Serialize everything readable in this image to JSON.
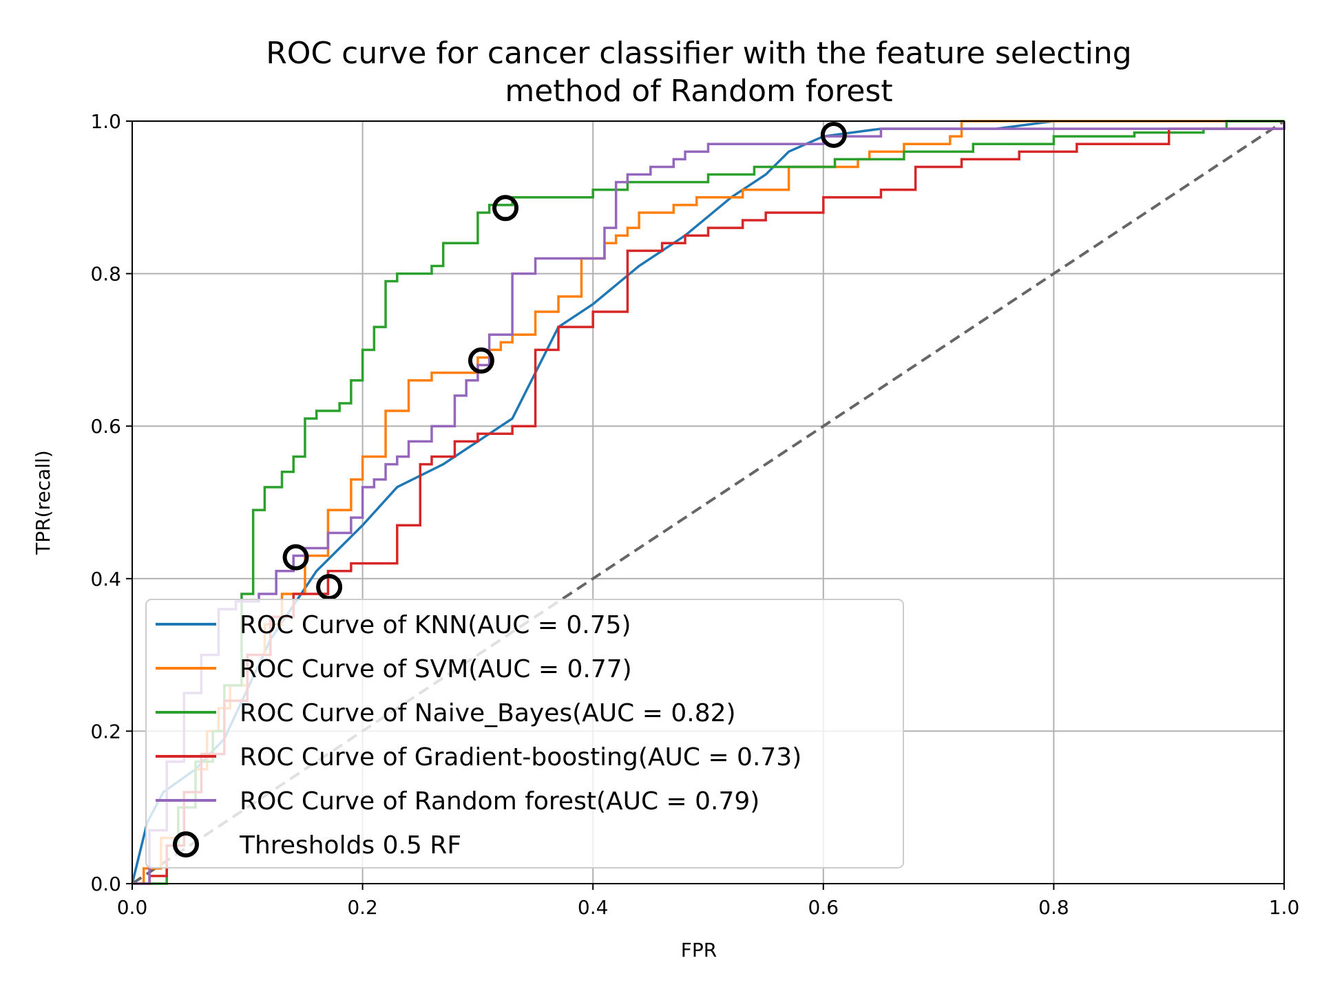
{
  "chart_data": {
    "type": "line",
    "title": [
      "ROC curve for cancer classifier with the feature selecting",
      "method of Random forest"
    ],
    "xlabel": "FPR",
    "ylabel": "TPR(recall)",
    "xlim": [
      0.0,
      1.0
    ],
    "ylim": [
      0.0,
      1.0
    ],
    "xticks": [
      "0.0",
      "0.2",
      "0.4",
      "0.6",
      "0.8",
      "1.0"
    ],
    "yticks": [
      "0.0",
      "0.2",
      "0.4",
      "0.6",
      "0.8",
      "1.0"
    ],
    "grid": true,
    "legend_position": "lower-left",
    "chance_line": {
      "x": [
        0,
        1
      ],
      "y": [
        0,
        1
      ],
      "color": "#666666",
      "dashed": true
    },
    "series": [
      {
        "name": "ROC Curve of KNN(AUC = 0.75)",
        "color": "#1f77b4",
        "step": false,
        "x": [
          0,
          0.013,
          0.027,
          0.055,
          0.08,
          0.12,
          0.16,
          0.2,
          0.23,
          0.27,
          0.31,
          0.33,
          0.35,
          0.37,
          0.4,
          0.44,
          0.48,
          0.52,
          0.55,
          0.57,
          0.6,
          0.65,
          0.7,
          0.75,
          0.8,
          0.82,
          0.9,
          1.0
        ],
        "y": [
          0,
          0.08,
          0.12,
          0.15,
          0.19,
          0.32,
          0.41,
          0.47,
          0.52,
          0.55,
          0.59,
          0.61,
          0.67,
          0.73,
          0.76,
          0.81,
          0.85,
          0.9,
          0.93,
          0.96,
          0.98,
          0.99,
          0.99,
          0.99,
          1.0,
          1.0,
          1.0,
          1.0
        ]
      },
      {
        "name": "ROC Curve of SVM(AUC = 0.77)",
        "color": "#ff7f0e",
        "step": true,
        "x": [
          0,
          0.01,
          0.025,
          0.04,
          0.055,
          0.065,
          0.075,
          0.085,
          0.1,
          0.115,
          0.13,
          0.15,
          0.17,
          0.19,
          0.2,
          0.22,
          0.24,
          0.26,
          0.28,
          0.3,
          0.31,
          0.32,
          0.33,
          0.35,
          0.37,
          0.39,
          0.41,
          0.42,
          0.43,
          0.44,
          0.47,
          0.49,
          0.53,
          0.57,
          0.63,
          0.64,
          0.67,
          0.71,
          0.72,
          1.0
        ],
        "y": [
          0,
          0.02,
          0.06,
          0.1,
          0.15,
          0.2,
          0.23,
          0.26,
          0.3,
          0.34,
          0.38,
          0.43,
          0.49,
          0.53,
          0.56,
          0.62,
          0.66,
          0.67,
          0.67,
          0.69,
          0.7,
          0.71,
          0.72,
          0.75,
          0.77,
          0.82,
          0.84,
          0.85,
          0.86,
          0.88,
          0.89,
          0.9,
          0.91,
          0.94,
          0.95,
          0.96,
          0.97,
          0.98,
          1.0,
          1.0
        ]
      },
      {
        "name": "ROC Curve of Naive_Bayes(AUC = 0.82)",
        "color": "#2ca02c",
        "step": true,
        "x": [
          0,
          0.03,
          0.04,
          0.055,
          0.07,
          0.08,
          0.095,
          0.105,
          0.115,
          0.13,
          0.14,
          0.15,
          0.16,
          0.18,
          0.19,
          0.2,
          0.21,
          0.22,
          0.23,
          0.26,
          0.27,
          0.3,
          0.31,
          0.33,
          0.4,
          0.43,
          0.5,
          0.54,
          0.61,
          0.67,
          0.73,
          0.8,
          0.87,
          0.93,
          0.95,
          1.0
        ],
        "y": [
          0,
          0.05,
          0.1,
          0.16,
          0.2,
          0.26,
          0.38,
          0.49,
          0.52,
          0.54,
          0.56,
          0.61,
          0.62,
          0.63,
          0.66,
          0.7,
          0.73,
          0.79,
          0.8,
          0.81,
          0.84,
          0.88,
          0.89,
          0.9,
          0.91,
          0.92,
          0.93,
          0.94,
          0.95,
          0.96,
          0.97,
          0.98,
          0.985,
          0.99,
          1.0,
          1.0
        ]
      },
      {
        "name": "ROC Curve of Gradient-boosting(AUC = 0.73)",
        "color": "#d62728",
        "step": true,
        "x": [
          0,
          0.015,
          0.03,
          0.045,
          0.06,
          0.08,
          0.1,
          0.12,
          0.14,
          0.17,
          0.19,
          0.23,
          0.25,
          0.26,
          0.28,
          0.3,
          0.33,
          0.35,
          0.37,
          0.4,
          0.43,
          0.46,
          0.48,
          0.5,
          0.53,
          0.55,
          0.6,
          0.65,
          0.68,
          0.72,
          0.77,
          0.82,
          0.9,
          1.0
        ],
        "y": [
          0,
          0.01,
          0.05,
          0.12,
          0.17,
          0.24,
          0.3,
          0.35,
          0.38,
          0.41,
          0.42,
          0.47,
          0.55,
          0.56,
          0.58,
          0.59,
          0.6,
          0.7,
          0.73,
          0.75,
          0.83,
          0.84,
          0.85,
          0.86,
          0.87,
          0.88,
          0.9,
          0.91,
          0.94,
          0.95,
          0.96,
          0.97,
          0.99,
          1.0
        ]
      },
      {
        "name": "ROC Curve of Random forest(AUC = 0.79)",
        "color": "#9467bd",
        "step": true,
        "x": [
          0,
          0.015,
          0.03,
          0.045,
          0.06,
          0.075,
          0.09,
          0.11,
          0.125,
          0.14,
          0.15,
          0.17,
          0.19,
          0.2,
          0.21,
          0.22,
          0.23,
          0.24,
          0.26,
          0.28,
          0.29,
          0.3,
          0.31,
          0.33,
          0.35,
          0.38,
          0.41,
          0.42,
          0.43,
          0.45,
          0.47,
          0.48,
          0.5,
          0.53,
          0.57,
          0.6,
          0.65,
          0.7,
          0.78,
          1.0
        ],
        "y": [
          0,
          0.07,
          0.16,
          0.25,
          0.3,
          0.36,
          0.37,
          0.38,
          0.41,
          0.43,
          0.44,
          0.46,
          0.48,
          0.52,
          0.53,
          0.55,
          0.56,
          0.58,
          0.6,
          0.64,
          0.66,
          0.68,
          0.72,
          0.8,
          0.82,
          0.82,
          0.86,
          0.92,
          0.93,
          0.94,
          0.95,
          0.96,
          0.97,
          0.97,
          0.97,
          0.98,
          0.99,
          0.99,
          0.99,
          1.0
        ]
      }
    ],
    "threshold_markers": {
      "name": "Thresholds 0.5 RF",
      "color": "#000000",
      "x": [
        0.142,
        0.171,
        0.303,
        0.324,
        0.609
      ],
      "y": [
        0.428,
        0.389,
        0.686,
        0.886,
        0.982
      ]
    }
  }
}
